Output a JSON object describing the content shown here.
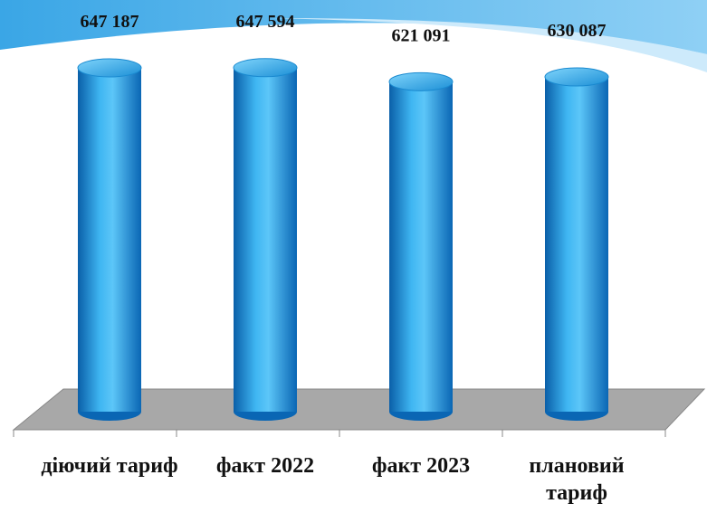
{
  "chart_data": {
    "type": "bar",
    "categories": [
      "діючий тариф",
      "факт 2022",
      "факт 2023",
      "плановий тариф"
    ],
    "values": [
      647187,
      647594,
      621091,
      630087
    ],
    "value_labels": [
      "647 187",
      "647 594",
      "621 091",
      "630 087"
    ],
    "color": "#1e9be0",
    "ylim": [
      0,
      700000
    ]
  }
}
